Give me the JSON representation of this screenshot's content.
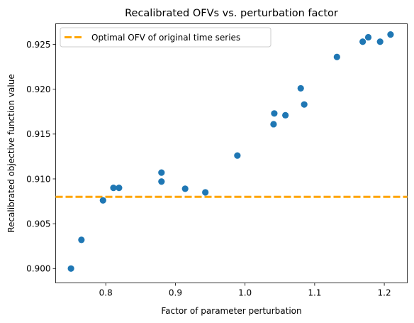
{
  "chart_data": {
    "type": "scatter",
    "title": "Recalibrated OFVs vs. perturbation factor",
    "xlabel": "Factor of parameter perturbation",
    "ylabel": "Recalibrated objective function value",
    "xlim": [
      0.728,
      1.233
    ],
    "ylim": [
      0.8984,
      0.9273
    ],
    "x_ticks": [
      0.8,
      0.9,
      1.0,
      1.1,
      1.2
    ],
    "x_tick_labels": [
      "0.8",
      "0.9",
      "1.0",
      "1.1",
      "1.2"
    ],
    "y_ticks": [
      0.9,
      0.905,
      0.91,
      0.915,
      0.92,
      0.925
    ],
    "y_tick_labels": [
      "0.900",
      "0.905",
      "0.910",
      "0.915",
      "0.920",
      "0.925"
    ],
    "grid": false,
    "legend_position": "upper-left",
    "series": [
      {
        "type": "scatter",
        "color": "#1f77b4",
        "x": [
          0.75,
          0.765,
          0.796,
          0.811,
          0.819,
          0.88,
          0.88,
          0.914,
          0.943,
          0.989,
          1.041,
          1.042,
          1.058,
          1.08,
          1.085,
          1.132,
          1.169,
          1.177,
          1.194,
          1.209
        ],
        "y": [
          0.9,
          0.9032,
          0.9076,
          0.909,
          0.909,
          0.9107,
          0.9097,
          0.9089,
          0.9085,
          0.9126,
          0.9161,
          0.9173,
          0.9171,
          0.9201,
          0.9183,
          0.9236,
          0.9253,
          0.9258,
          0.9253,
          0.9261
        ]
      }
    ],
    "reference_lines": [
      {
        "name": "Optimal OFV of original time series",
        "orientation": "horizontal",
        "y": 0.908,
        "color": "#ffa500",
        "style": "dashed"
      }
    ]
  }
}
